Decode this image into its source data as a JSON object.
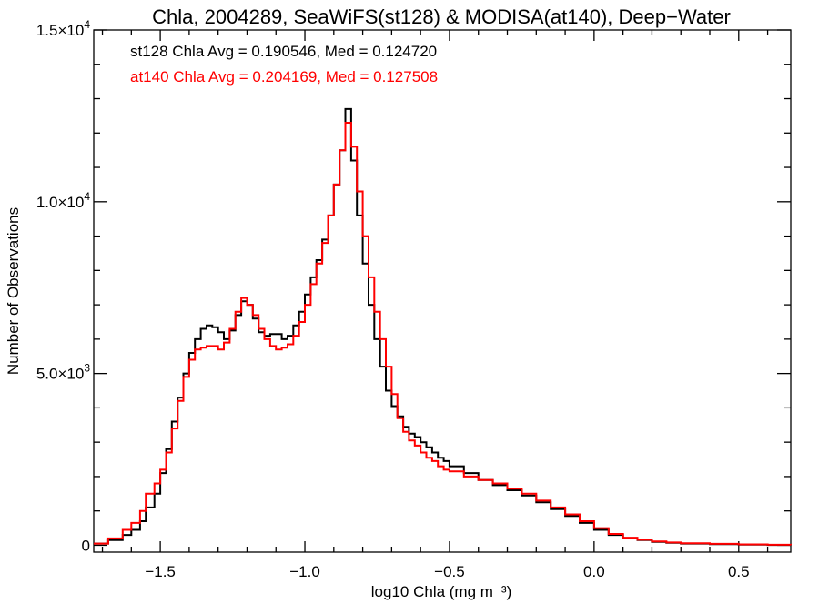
{
  "chart_data": {
    "type": "line",
    "step": true,
    "title": "Chla, 2004289, SeaWiFS(st128) & MODISA(at140), Deep−Water",
    "xlabel": "log10 Chla (mg m⁻³)",
    "ylabel": "Number of Observations",
    "xlim": [
      -1.73,
      0.68
    ],
    "ylim": [
      -200,
      15000
    ],
    "grid": false,
    "xticks": {
      "major": [
        -1.5,
        -1.0,
        -0.5,
        0.0,
        0.5
      ],
      "labels": [
        "−1.5",
        "−1.0",
        "−0.5",
        "0.0",
        "0.5"
      ],
      "minor_step": 0.1
    },
    "yticks": {
      "major": [
        0,
        5000,
        10000,
        15000
      ],
      "labels": [
        {
          "mant": "0",
          "exp": ""
        },
        {
          "mant": "5.0×10",
          "exp": "3"
        },
        {
          "mant": "1.0×10",
          "exp": "4"
        },
        {
          "mant": "1.5×10",
          "exp": "4"
        }
      ],
      "minor_step": 1000
    },
    "annotations": [
      {
        "text": "st128 Chla Avg = 0.190546, Med = 0.124720",
        "color": "#000000"
      },
      {
        "text": "at140 Chla Avg = 0.204169, Med = 0.127508",
        "color": "#ff0000"
      }
    ],
    "series": [
      {
        "color": "#000000",
        "x": [
          -1.73,
          -1.68,
          -1.63,
          -1.6,
          -1.57,
          -1.55,
          -1.52,
          -1.5,
          -1.48,
          -1.46,
          -1.44,
          -1.42,
          -1.4,
          -1.38,
          -1.36,
          -1.34,
          -1.32,
          -1.3,
          -1.28,
          -1.26,
          -1.24,
          -1.22,
          -1.2,
          -1.18,
          -1.16,
          -1.14,
          -1.12,
          -1.1,
          -1.08,
          -1.06,
          -1.04,
          -1.02,
          -1.0,
          -0.98,
          -0.96,
          -0.94,
          -0.92,
          -0.9,
          -0.88,
          -0.86,
          -0.84,
          -0.82,
          -0.8,
          -0.78,
          -0.76,
          -0.74,
          -0.72,
          -0.7,
          -0.68,
          -0.66,
          -0.64,
          -0.62,
          -0.6,
          -0.58,
          -0.56,
          -0.54,
          -0.52,
          -0.5,
          -0.45,
          -0.4,
          -0.35,
          -0.3,
          -0.25,
          -0.2,
          -0.15,
          -0.1,
          -0.05,
          0.0,
          0.05,
          0.1,
          0.15,
          0.2,
          0.25,
          0.3,
          0.4,
          0.5,
          0.6,
          0.68
        ],
        "values": [
          50,
          150,
          300,
          450,
          700,
          1100,
          1500,
          2100,
          2800,
          3600,
          4300,
          5000,
          5600,
          6000,
          6300,
          6400,
          6350,
          6200,
          6000,
          6250,
          6700,
          7100,
          7000,
          6600,
          6200,
          6100,
          6150,
          6150,
          6000,
          6100,
          6400,
          6800,
          7300,
          7800,
          8300,
          8900,
          9600,
          10500,
          11500,
          12700,
          11200,
          9600,
          8200,
          7000,
          6000,
          5200,
          4500,
          4050,
          3750,
          3450,
          3250,
          3150,
          3000,
          2850,
          2700,
          2550,
          2450,
          2300,
          2100,
          1900,
          1750,
          1600,
          1450,
          1250,
          1050,
          850,
          650,
          450,
          300,
          200,
          150,
          100,
          70,
          50,
          30,
          20,
          10,
          5
        ]
      },
      {
        "color": "#ff0000",
        "x": [
          -1.73,
          -1.68,
          -1.63,
          -1.6,
          -1.57,
          -1.55,
          -1.52,
          -1.5,
          -1.48,
          -1.46,
          -1.44,
          -1.42,
          -1.4,
          -1.38,
          -1.36,
          -1.34,
          -1.32,
          -1.3,
          -1.28,
          -1.26,
          -1.24,
          -1.22,
          -1.2,
          -1.18,
          -1.16,
          -1.14,
          -1.12,
          -1.1,
          -1.08,
          -1.06,
          -1.04,
          -1.02,
          -1.0,
          -0.98,
          -0.96,
          -0.94,
          -0.92,
          -0.9,
          -0.88,
          -0.86,
          -0.84,
          -0.82,
          -0.8,
          -0.78,
          -0.76,
          -0.74,
          -0.72,
          -0.7,
          -0.68,
          -0.66,
          -0.64,
          -0.62,
          -0.6,
          -0.58,
          -0.56,
          -0.54,
          -0.52,
          -0.5,
          -0.45,
          -0.4,
          -0.35,
          -0.3,
          -0.25,
          -0.2,
          -0.15,
          -0.1,
          -0.05,
          0.0,
          0.05,
          0.1,
          0.15,
          0.2,
          0.25,
          0.3,
          0.4,
          0.5,
          0.6,
          0.68
        ],
        "values": [
          50,
          200,
          450,
          650,
          1000,
          1500,
          1800,
          2200,
          2700,
          3400,
          4200,
          4900,
          5400,
          5700,
          5750,
          5800,
          5800,
          5700,
          5900,
          6300,
          6800,
          7200,
          7000,
          6700,
          6300,
          6000,
          5800,
          5700,
          5750,
          5850,
          6100,
          6500,
          7000,
          7600,
          8200,
          8800,
          9600,
          10500,
          11500,
          12300,
          11600,
          10300,
          9000,
          7800,
          6800,
          6000,
          5200,
          4400,
          3700,
          3300,
          3050,
          2900,
          2700,
          2550,
          2450,
          2300,
          2200,
          2150,
          2000,
          1900,
          1800,
          1650,
          1500,
          1300,
          1100,
          900,
          700,
          500,
          330,
          220,
          160,
          110,
          80,
          60,
          40,
          25,
          15,
          5
        ]
      }
    ]
  }
}
